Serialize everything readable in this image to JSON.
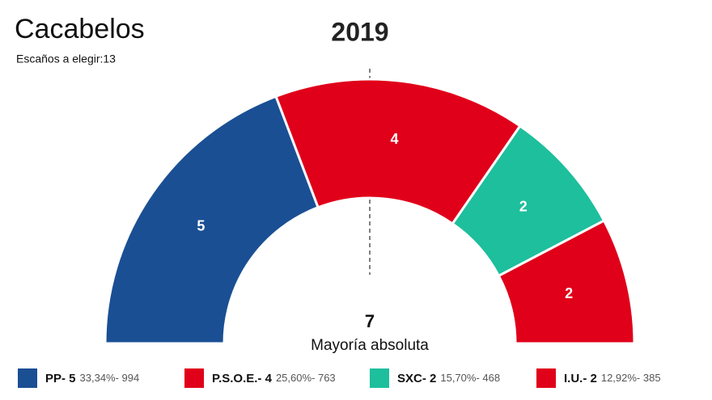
{
  "chart_data": {
    "type": "semicircle",
    "title": "Cacabelos",
    "subtitle": "Escaños a elegir:13",
    "year": "2019",
    "majority": 7,
    "majority_label": "Mayoría absoluta",
    "categories": [
      "PP- 5",
      "P.S.O.E.- 4",
      "SXC- 2",
      "I.U.- 2"
    ],
    "legend_details": [
      "33,34%- 994",
      "25,60%- 763",
      "15,70%- 468",
      "12,92%- 385"
    ],
    "values": [
      5,
      4,
      2,
      2
    ],
    "colors": [
      "#1a4f94",
      "#e0001a",
      "#1dbf9c",
      "#e0001a"
    ]
  }
}
